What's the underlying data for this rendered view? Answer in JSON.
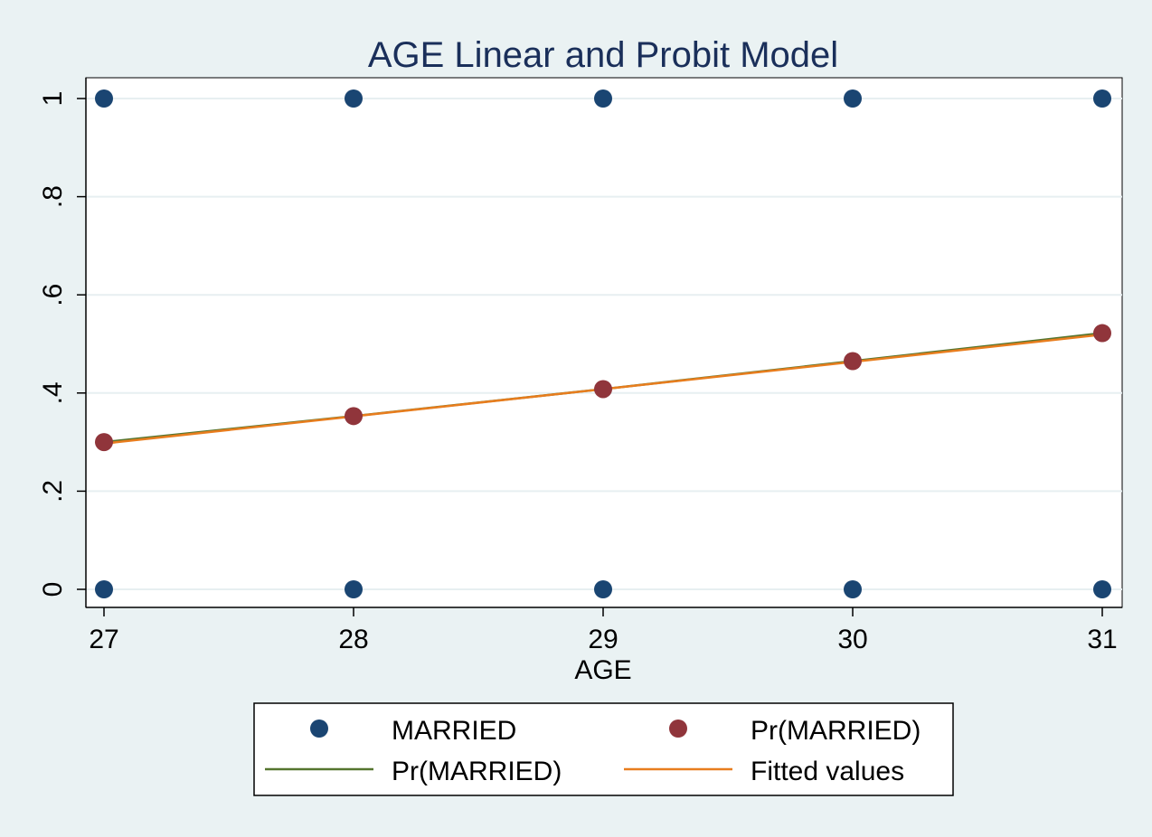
{
  "chart_data": {
    "type": "scatter",
    "title": "AGE Linear and Probit Model",
    "xlabel": "AGE",
    "ylabel": "",
    "xlim": [
      27,
      31
    ],
    "ylim": [
      0,
      1
    ],
    "x_ticks": [
      27,
      28,
      29,
      30,
      31
    ],
    "x_tick_labels": [
      "27",
      "28",
      "29",
      "30",
      "31"
    ],
    "y_ticks": [
      0,
      0.2,
      0.4,
      0.6,
      0.8,
      1
    ],
    "y_tick_labels": [
      "0",
      ".2",
      ".4",
      ".6",
      ".8",
      "1"
    ],
    "grid": true,
    "legend_position": "bottom",
    "series": [
      {
        "name": "MARRIED",
        "kind": "scatter",
        "color": "#1a4572",
        "x": [
          27,
          28,
          29,
          30,
          31,
          27,
          28,
          29,
          30,
          31
        ],
        "y": [
          1,
          1,
          1,
          1,
          1,
          0,
          0,
          0,
          0,
          0
        ]
      },
      {
        "name": "Pr(MARRIED)",
        "kind": "scatter",
        "color": "#90353b",
        "x": [
          27,
          28,
          29,
          30,
          31
        ],
        "y": [
          0.3,
          0.353,
          0.408,
          0.465,
          0.522
        ]
      },
      {
        "name": "Pr(MARRIED)",
        "kind": "line",
        "color": "#55752f",
        "x": [
          27,
          28,
          29,
          30,
          31
        ],
        "y": [
          0.3,
          0.353,
          0.408,
          0.465,
          0.522
        ]
      },
      {
        "name": "Fitted values",
        "kind": "line",
        "color": "#e87d1e",
        "x": [
          27,
          31
        ],
        "y": [
          0.297,
          0.519
        ]
      }
    ]
  }
}
